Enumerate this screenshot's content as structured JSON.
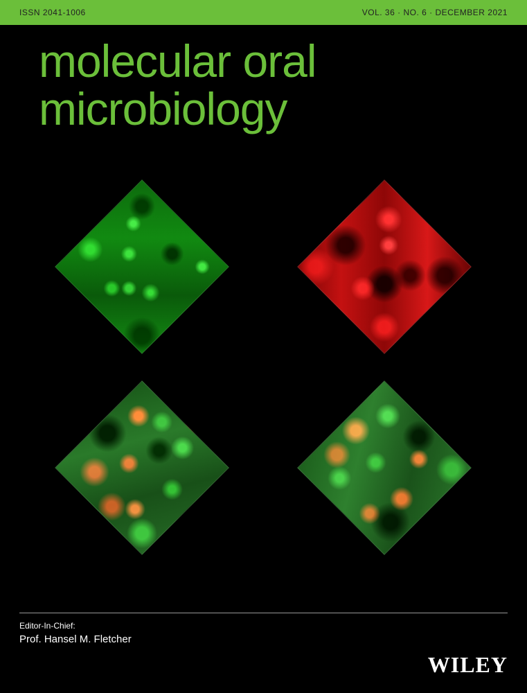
{
  "header": {
    "issn": "ISSN 2041-1006",
    "issue": "VOL. 36 · NO. 6 · DECEMBER 2021"
  },
  "title": {
    "line1": "molecular oral",
    "line2": "microbiology"
  },
  "tiles": {
    "tl_name": "biofilm-green-tile",
    "tr_name": "biofilm-red-tile",
    "bl_name": "biofilm-mixed-a-tile",
    "br_name": "biofilm-mixed-b-tile"
  },
  "editor": {
    "label": "Editor-In-Chief:",
    "name": "Prof. Hansel M. Fletcher"
  },
  "publisher": "WILEY",
  "colors": {
    "accent": "#6bbf3a",
    "background": "#000000",
    "text_dark": "#222222",
    "text_light": "#ffffff"
  }
}
